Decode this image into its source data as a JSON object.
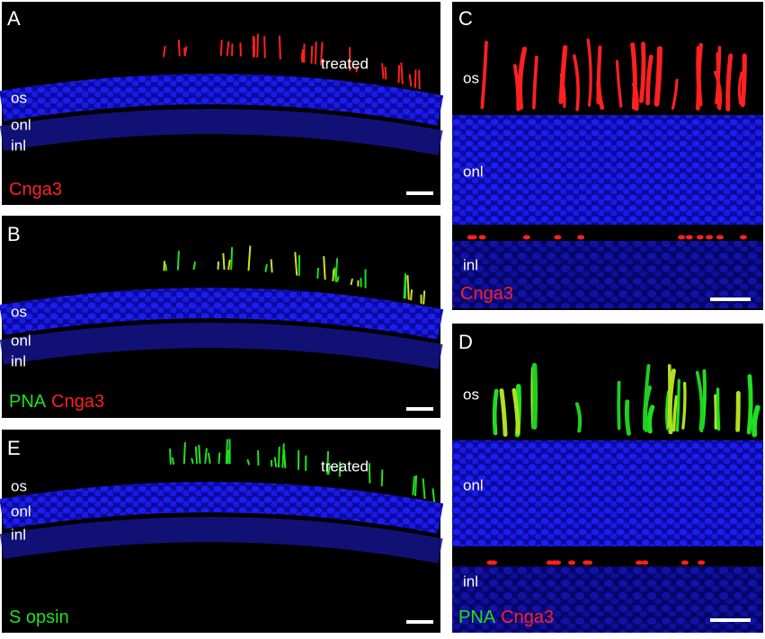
{
  "panels": [
    {
      "letter": "A",
      "layers": [
        "os",
        "onl",
        "inl"
      ],
      "annotation": "treated",
      "stain": [
        {
          "text": "Cnga3",
          "color": "#ff2020"
        }
      ]
    },
    {
      "letter": "B",
      "layers": [
        "os",
        "onl",
        "inl"
      ],
      "stain": [
        {
          "text": "PNA",
          "color": "#20e020"
        },
        {
          "text": "Cnga3",
          "color": "#ff2020"
        }
      ]
    },
    {
      "letter": "E",
      "layers": [
        "os",
        "onl",
        "inl"
      ],
      "annotation": "treated",
      "stain": [
        {
          "text": "S opsin",
          "color": "#20e020"
        }
      ]
    },
    {
      "letter": "C",
      "layers": [
        "os",
        "onl",
        "inl"
      ],
      "stain": [
        {
          "text": "Cnga3",
          "color": "#ff2020"
        }
      ]
    },
    {
      "letter": "D",
      "layers": [
        "os",
        "onl",
        "inl"
      ],
      "stain": [
        {
          "text": "PNA",
          "color": "#20e020"
        },
        {
          "text": "Cnga3",
          "color": "#ff2020"
        }
      ]
    }
  ]
}
